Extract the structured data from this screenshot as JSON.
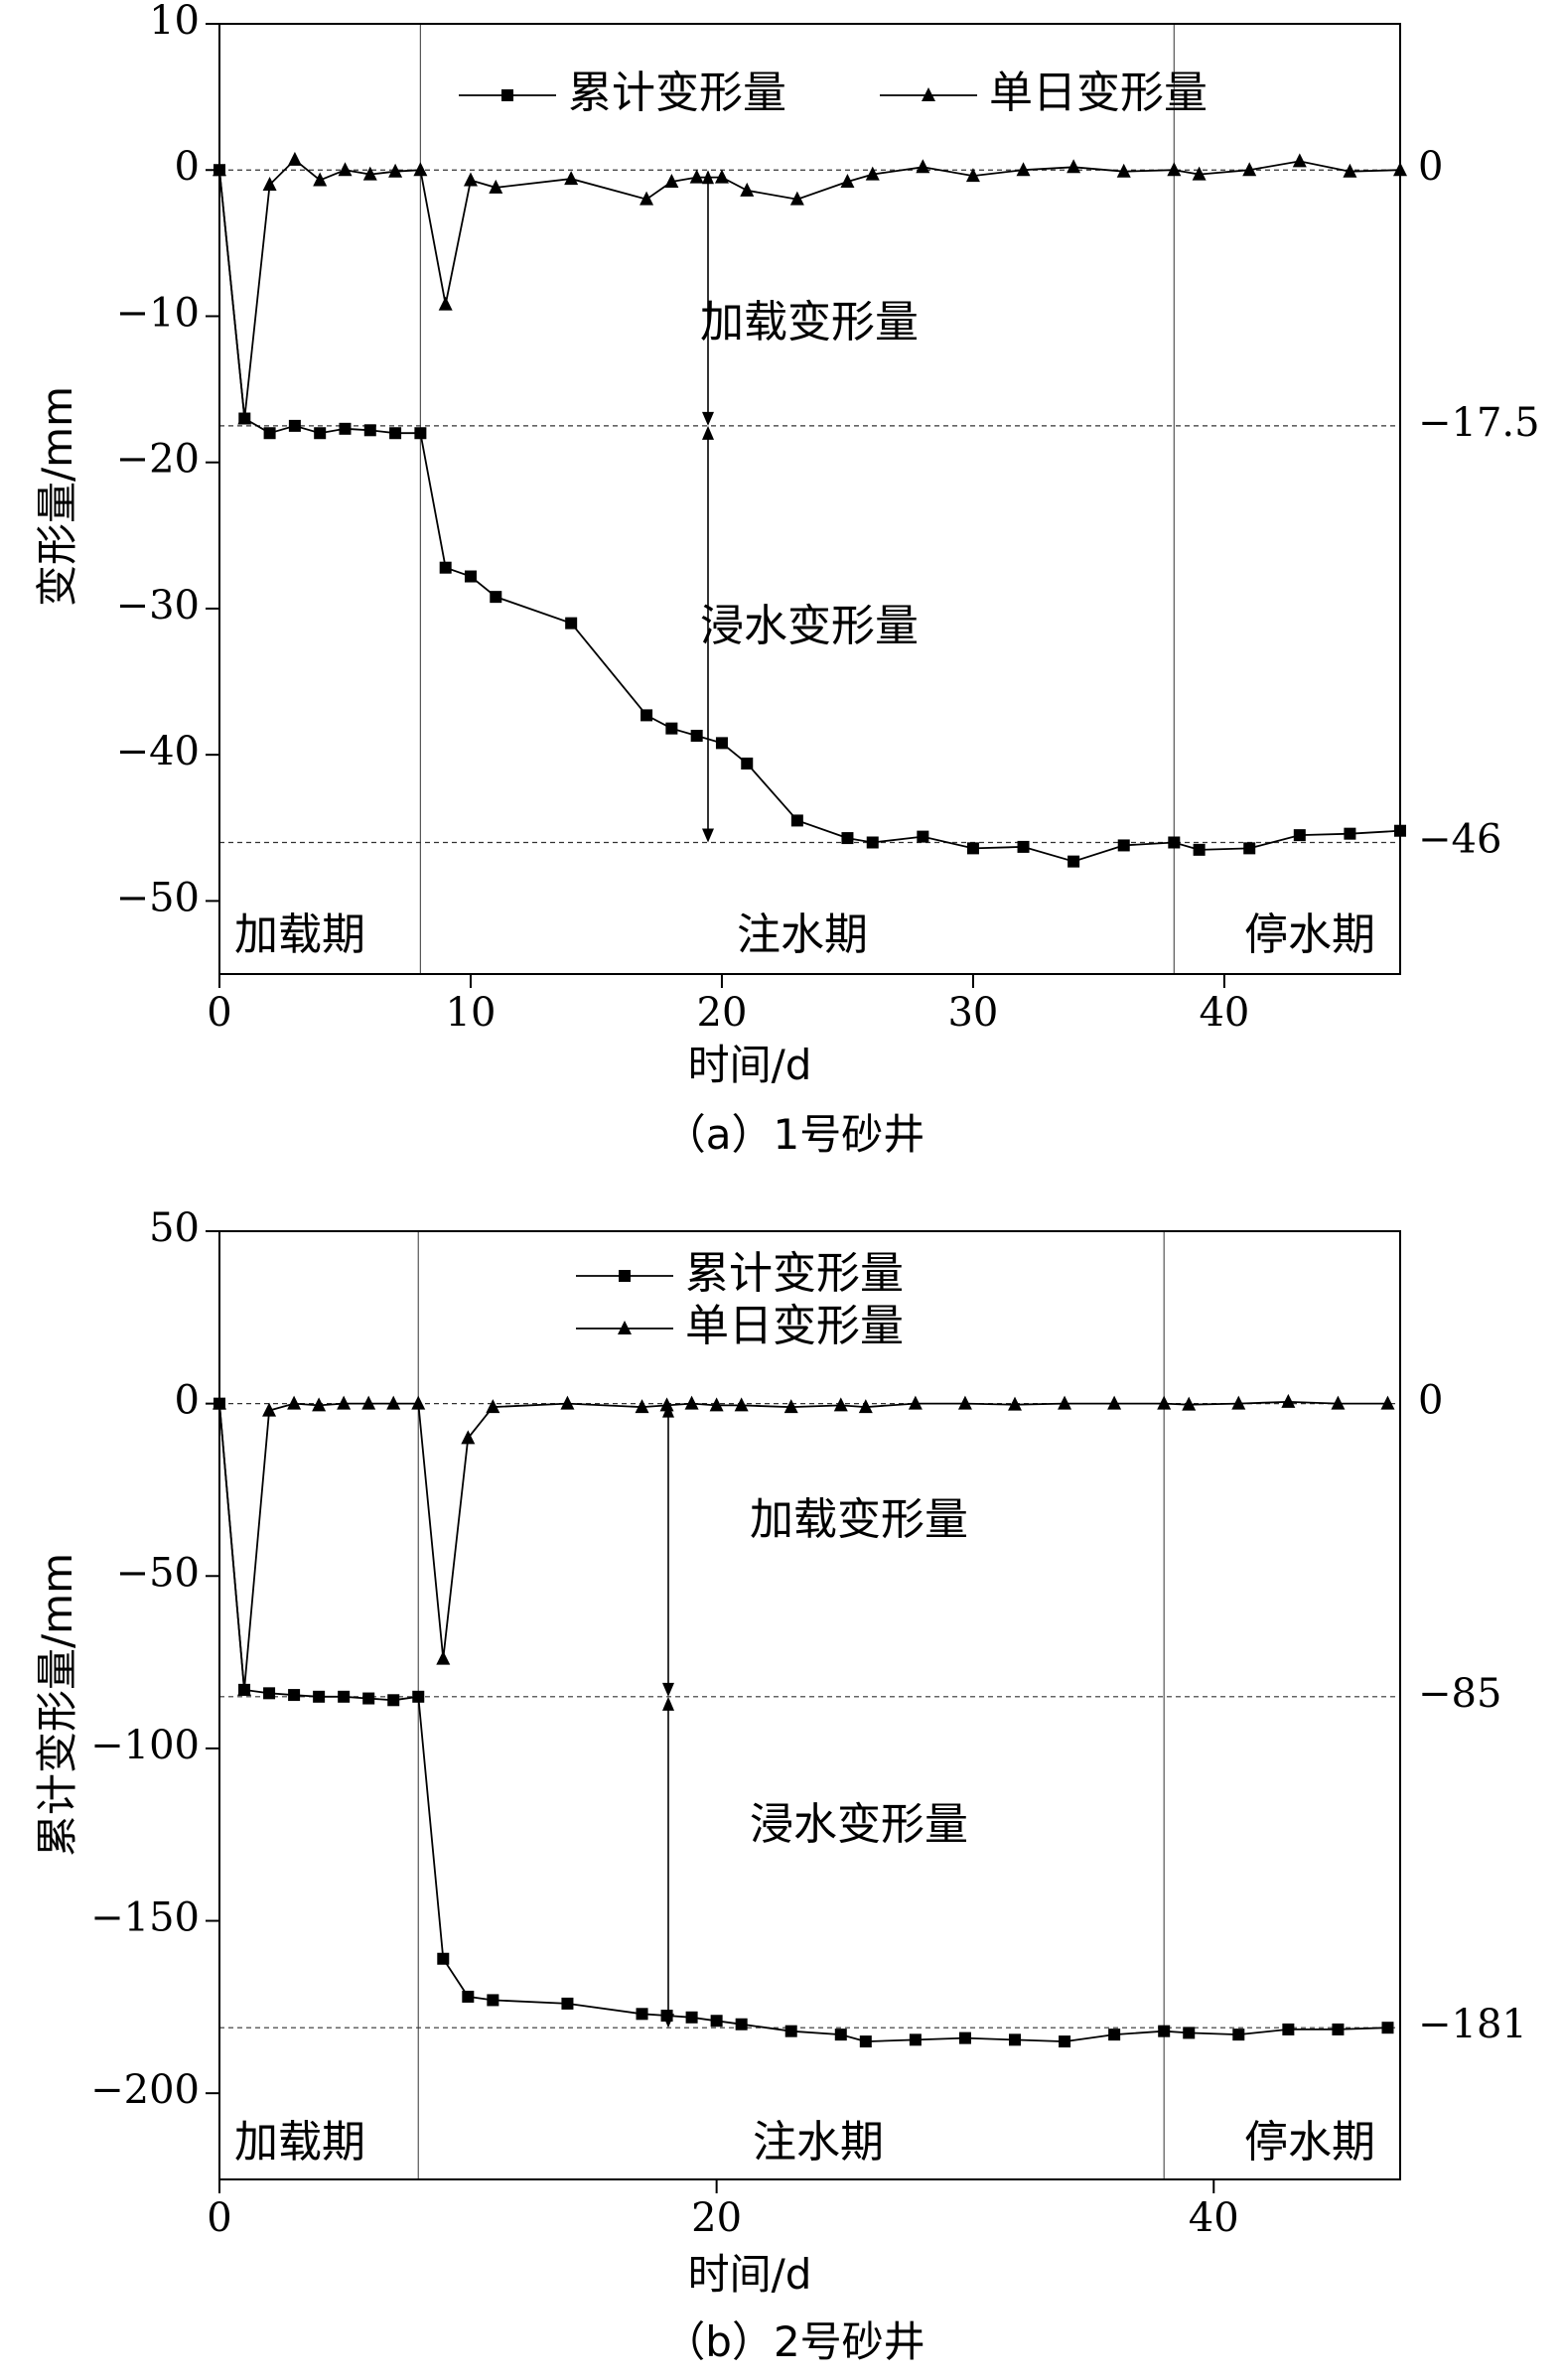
{
  "chart_data": [
    {
      "type": "line",
      "caption": "（a）1号砂井",
      "xlabel": "时间/d",
      "ylabel": "变形量/mm",
      "xlim": [
        0,
        47
      ],
      "ylim": [
        -55,
        10
      ],
      "xticks": [
        0,
        10,
        20,
        30,
        40
      ],
      "yticks": [
        10,
        0,
        -10,
        -20,
        -30,
        -40,
        -50
      ],
      "legend_position": "top",
      "series": [
        {
          "name": "累计变形量",
          "marker": "square",
          "x": [
            0,
            1,
            2,
            3,
            4,
            5,
            6,
            7,
            8,
            9,
            10,
            11,
            14,
            17,
            18,
            19,
            20,
            21,
            23,
            25,
            26,
            28,
            30,
            32,
            34,
            36,
            38,
            39,
            41,
            43,
            45,
            47
          ],
          "y": [
            0,
            -17,
            -18,
            -17.5,
            -18,
            -17.7,
            -17.8,
            -18,
            -18,
            -27.2,
            -27.8,
            -29.2,
            -31,
            -37.3,
            -38.2,
            -38.7,
            -39.2,
            -40.6,
            -44.5,
            -45.7,
            -46,
            -45.6,
            -46.4,
            -46.3,
            -47.3,
            -46.2,
            -46,
            -46.5,
            -46.4,
            -45.5,
            -45.4,
            -45.2
          ]
        },
        {
          "name": "单日变形量",
          "marker": "triangle",
          "x": [
            0,
            1,
            2,
            3,
            4,
            5,
            6,
            7,
            8,
            9,
            10,
            11,
            14,
            17,
            18,
            19,
            20,
            21,
            23,
            25,
            26,
            28,
            30,
            32,
            34,
            36,
            38,
            39,
            41,
            43,
            45,
            47
          ],
          "y": [
            0,
            -17,
            -1,
            0.7,
            -0.7,
            0,
            -0.3,
            -0.1,
            0,
            -9.2,
            -0.7,
            -1.2,
            -0.6,
            -2,
            -0.8,
            -0.5,
            -0.5,
            -1.4,
            -2,
            -0.8,
            -0.3,
            0.2,
            -0.4,
            0,
            0.2,
            -0.1,
            0,
            -0.3,
            0,
            0.6,
            -0.1,
            0
          ]
        }
      ],
      "reference_lines": [
        {
          "y": 0,
          "label": "0"
        },
        {
          "y": -17.5,
          "label": "−17.5"
        },
        {
          "y": -46,
          "label": "−46"
        }
      ],
      "period_dividers": [
        8,
        38
      ],
      "periods": [
        "加载期",
        "注水期",
        "停水期"
      ],
      "annotations": {
        "loading": "加载变形量",
        "soaking": "浸水变形量"
      }
    },
    {
      "type": "line",
      "caption": "（b）2号砂井",
      "xlabel": "时间/d",
      "ylabel": "累计变形量/mm",
      "xlim": [
        0,
        47.5
      ],
      "ylim": [
        -225,
        50
      ],
      "xticks": [
        0,
        20,
        40
      ],
      "yticks": [
        50,
        0,
        -50,
        -100,
        -150,
        -200
      ],
      "legend_position": "top-left",
      "series": [
        {
          "name": "累计变形量",
          "marker": "square",
          "x": [
            0,
            1,
            2,
            3,
            4,
            5,
            6,
            7,
            8,
            9,
            10,
            11,
            14,
            17,
            18,
            19,
            20,
            21,
            23,
            25,
            26,
            28,
            30,
            32,
            34,
            36,
            38,
            39,
            41,
            43,
            45,
            47
          ],
          "y": [
            0,
            -83,
            -84,
            -84.5,
            -85,
            -85,
            -85.5,
            -86,
            -85,
            -161,
            -172,
            -173,
            -174,
            -177,
            -177.5,
            -178,
            -179,
            -180,
            -182,
            -183,
            -185,
            -184.5,
            -184,
            -184.5,
            -185,
            -183,
            -182,
            -182.5,
            -183,
            -181.5,
            -181.5,
            -181
          ]
        },
        {
          "name": "单日变形量",
          "marker": "triangle",
          "x": [
            0,
            1,
            2,
            3,
            4,
            5,
            6,
            7,
            8,
            9,
            10,
            11,
            14,
            17,
            18,
            19,
            20,
            21,
            23,
            25,
            26,
            28,
            30,
            32,
            34,
            36,
            38,
            39,
            41,
            43,
            45,
            47
          ],
          "y": [
            0,
            -83,
            -2,
            0,
            -0.5,
            0,
            0,
            0,
            0,
            -74,
            -10,
            -1,
            0,
            -1,
            -0.5,
            0,
            -0.5,
            -0.5,
            -1,
            -0.5,
            -1,
            0,
            0,
            -0.3,
            0,
            0,
            0,
            -0.3,
            0,
            0.5,
            0,
            0
          ]
        }
      ],
      "reference_lines": [
        {
          "y": 0,
          "label": "0"
        },
        {
          "y": -85,
          "label": "−85"
        },
        {
          "y": -181,
          "label": "−181"
        }
      ],
      "period_dividers": [
        8,
        38
      ],
      "periods": [
        "加载期",
        "注水期",
        "停水期"
      ],
      "annotations": {
        "loading": "加载变形量",
        "soaking": "浸水变形量"
      }
    }
  ]
}
